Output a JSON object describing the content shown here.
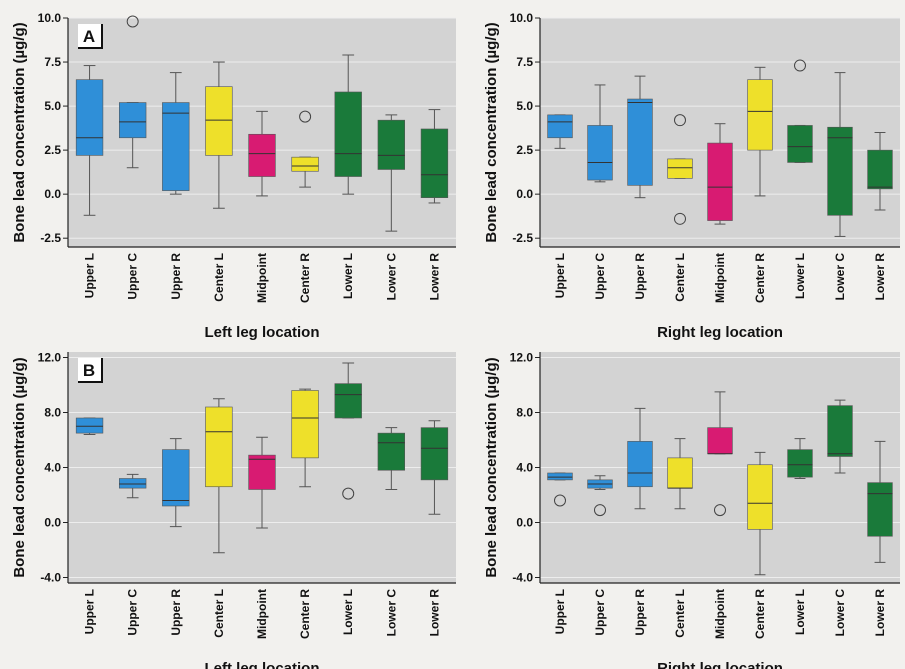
{
  "chart_data": [
    {
      "type": "box",
      "panel_label": "A",
      "xlabel": "Left leg location",
      "ylabel": "Bone lead concentration (µg/g)",
      "ylim": [
        -3,
        10
      ],
      "yticks": [
        "10.0",
        "7.5",
        "5.0",
        "2.5",
        "0.0",
        "-2.5"
      ],
      "ytick_values": [
        10,
        7.5,
        5,
        2.5,
        0,
        -2.5
      ],
      "categories": [
        "Upper L",
        "Upper C",
        "Upper R",
        "Center L",
        "Midpoint",
        "Center R",
        "Lower L",
        "Lower C",
        "Lower R"
      ],
      "colors": [
        "#2f8fd8",
        "#2f8fd8",
        "#2f8fd8",
        "#eee02a",
        "#d81b72",
        "#eee02a",
        "#1a7a3a",
        "#1a7a3a",
        "#1a7a3a"
      ],
      "boxes": [
        {
          "min": -1.2,
          "q1": 2.2,
          "median": 3.2,
          "q3": 6.5,
          "max": 7.3,
          "outliers": []
        },
        {
          "min": 1.5,
          "q1": 3.2,
          "median": 4.1,
          "q3": 5.2,
          "max": 5.2,
          "outliers": [
            9.8
          ]
        },
        {
          "min": 0.0,
          "q1": 0.2,
          "median": 4.6,
          "q3": 5.2,
          "max": 6.9,
          "outliers": []
        },
        {
          "min": -0.8,
          "q1": 2.2,
          "median": 4.2,
          "q3": 6.1,
          "max": 7.5,
          "outliers": []
        },
        {
          "min": -0.1,
          "q1": 1.0,
          "median": 2.3,
          "q3": 3.4,
          "max": 4.7,
          "outliers": []
        },
        {
          "min": 0.4,
          "q1": 1.3,
          "median": 1.6,
          "q3": 2.1,
          "max": 2.1,
          "outliers": [
            4.4
          ]
        },
        {
          "min": 0.0,
          "q1": 1.0,
          "median": 2.3,
          "q3": 5.8,
          "max": 7.9,
          "outliers": []
        },
        {
          "min": -2.1,
          "q1": 1.4,
          "median": 2.2,
          "q3": 4.2,
          "max": 4.5,
          "outliers": []
        },
        {
          "min": -0.5,
          "q1": -0.2,
          "median": 1.1,
          "q3": 3.7,
          "max": 4.8,
          "outliers": []
        }
      ]
    },
    {
      "type": "box",
      "panel_label": "",
      "xlabel": "Right leg location",
      "ylabel": "Bone lead concentration (µg/g)",
      "ylim": [
        -3,
        10
      ],
      "yticks": [
        "10.0",
        "7.5",
        "5.0",
        "2.5",
        "0.0",
        "-2.5"
      ],
      "ytick_values": [
        10,
        7.5,
        5,
        2.5,
        0,
        -2.5
      ],
      "categories": [
        "Upper L",
        "Upper C",
        "Upper R",
        "Center L",
        "Midpoint",
        "Center R",
        "Lower L",
        "Lower C",
        "Lower R"
      ],
      "colors": [
        "#2f8fd8",
        "#2f8fd8",
        "#2f8fd8",
        "#eee02a",
        "#d81b72",
        "#eee02a",
        "#1a7a3a",
        "#1a7a3a",
        "#1a7a3a"
      ],
      "boxes": [
        {
          "min": 2.6,
          "q1": 3.2,
          "median": 4.1,
          "q3": 4.5,
          "max": 4.5,
          "outliers": []
        },
        {
          "min": 0.7,
          "q1": 0.8,
          "median": 1.8,
          "q3": 3.9,
          "max": 6.2,
          "outliers": []
        },
        {
          "min": -0.2,
          "q1": 0.5,
          "median": 5.2,
          "q3": 5.4,
          "max": 6.7,
          "outliers": []
        },
        {
          "min": 0.9,
          "q1": 0.9,
          "median": 1.5,
          "q3": 2.0,
          "max": 2.0,
          "outliers": [
            4.2,
            -1.4
          ]
        },
        {
          "min": -1.7,
          "q1": -1.5,
          "median": 0.4,
          "q3": 2.9,
          "max": 4.0,
          "outliers": []
        },
        {
          "min": -0.1,
          "q1": 2.5,
          "median": 4.7,
          "q3": 6.5,
          "max": 7.2,
          "outliers": []
        },
        {
          "min": 1.8,
          "q1": 1.8,
          "median": 2.7,
          "q3": 3.9,
          "max": 3.9,
          "outliers": [
            7.3
          ]
        },
        {
          "min": -2.4,
          "q1": -1.2,
          "median": 3.2,
          "q3": 3.8,
          "max": 6.9,
          "outliers": []
        },
        {
          "min": -0.9,
          "q1": 0.3,
          "median": 0.4,
          "q3": 2.5,
          "max": 3.5,
          "outliers": []
        }
      ]
    },
    {
      "type": "box",
      "panel_label": "B",
      "xlabel": "Left leg location",
      "ylabel": "Bone lead concentration (µg/g)",
      "ylim": [
        -4.4,
        12.4
      ],
      "yticks": [
        "12.0",
        "8.0",
        "4.0",
        "0.0",
        "-4.0"
      ],
      "ytick_values": [
        12,
        8,
        4,
        0,
        -4
      ],
      "categories": [
        "Upper L",
        "Upper C",
        "Upper R",
        "Center L",
        "Midpoint",
        "Center R",
        "Lower L",
        "Lower C",
        "Lower R"
      ],
      "colors": [
        "#2f8fd8",
        "#2f8fd8",
        "#2f8fd8",
        "#eee02a",
        "#d81b72",
        "#eee02a",
        "#1a7a3a",
        "#1a7a3a",
        "#1a7a3a"
      ],
      "boxes": [
        {
          "min": 6.4,
          "q1": 6.5,
          "median": 7.0,
          "q3": 7.6,
          "max": 7.6,
          "outliers": []
        },
        {
          "min": 1.8,
          "q1": 2.5,
          "median": 2.8,
          "q3": 3.2,
          "max": 3.5,
          "outliers": []
        },
        {
          "min": -0.3,
          "q1": 1.2,
          "median": 1.6,
          "q3": 5.3,
          "max": 6.1,
          "outliers": []
        },
        {
          "min": -2.2,
          "q1": 2.6,
          "median": 6.6,
          "q3": 8.4,
          "max": 9.0,
          "outliers": []
        },
        {
          "min": -0.4,
          "q1": 2.4,
          "median": 4.6,
          "q3": 4.9,
          "max": 6.2,
          "outliers": []
        },
        {
          "min": 2.6,
          "q1": 4.7,
          "median": 7.6,
          "q3": 9.6,
          "max": 9.7,
          "outliers": []
        },
        {
          "min": 7.6,
          "q1": 7.6,
          "median": 9.3,
          "q3": 10.1,
          "max": 11.6,
          "outliers": [
            2.1
          ]
        },
        {
          "min": 2.4,
          "q1": 3.8,
          "median": 5.8,
          "q3": 6.5,
          "max": 6.9,
          "outliers": []
        },
        {
          "min": 0.6,
          "q1": 3.1,
          "median": 5.4,
          "q3": 6.9,
          "max": 7.4,
          "outliers": []
        }
      ]
    },
    {
      "type": "box",
      "panel_label": "",
      "xlabel": "Right leg location",
      "ylabel": "Bone lead concentration (µg/g)",
      "ylim": [
        -4.4,
        12.4
      ],
      "yticks": [
        "12.0",
        "8.0",
        "4.0",
        "0.0",
        "-4.0"
      ],
      "ytick_values": [
        12,
        8,
        4,
        0,
        -4
      ],
      "categories": [
        "Upper L",
        "Upper C",
        "Upper R",
        "Center L",
        "Midpoint",
        "Center R",
        "Lower L",
        "Lower C",
        "Lower R"
      ],
      "colors": [
        "#2f8fd8",
        "#2f8fd8",
        "#2f8fd8",
        "#eee02a",
        "#d81b72",
        "#eee02a",
        "#1a7a3a",
        "#1a7a3a",
        "#1a7a3a"
      ],
      "boxes": [
        {
          "min": 3.1,
          "q1": 3.1,
          "median": 3.3,
          "q3": 3.6,
          "max": 3.6,
          "outliers": [
            1.6
          ]
        },
        {
          "min": 2.4,
          "q1": 2.5,
          "median": 2.8,
          "q3": 3.1,
          "max": 3.4,
          "outliers": [
            0.9
          ]
        },
        {
          "min": 1.0,
          "q1": 2.6,
          "median": 3.6,
          "q3": 5.9,
          "max": 8.3,
          "outliers": []
        },
        {
          "min": 1.0,
          "q1": 2.5,
          "median": 2.5,
          "q3": 4.7,
          "max": 6.1,
          "outliers": []
        },
        {
          "min": 5.0,
          "q1": 5.0,
          "median": 5.0,
          "q3": 6.9,
          "max": 9.5,
          "outliers": [
            0.9
          ]
        },
        {
          "min": -3.8,
          "q1": -0.5,
          "median": 1.4,
          "q3": 4.2,
          "max": 5.1,
          "outliers": []
        },
        {
          "min": 3.2,
          "q1": 3.3,
          "median": 4.2,
          "q3": 5.3,
          "max": 6.1,
          "outliers": []
        },
        {
          "min": 3.6,
          "q1": 4.8,
          "median": 5.0,
          "q3": 8.5,
          "max": 8.9,
          "outliers": []
        },
        {
          "min": -2.9,
          "q1": -1.0,
          "median": 2.1,
          "q3": 2.9,
          "max": 5.9,
          "outliers": []
        }
      ]
    }
  ]
}
